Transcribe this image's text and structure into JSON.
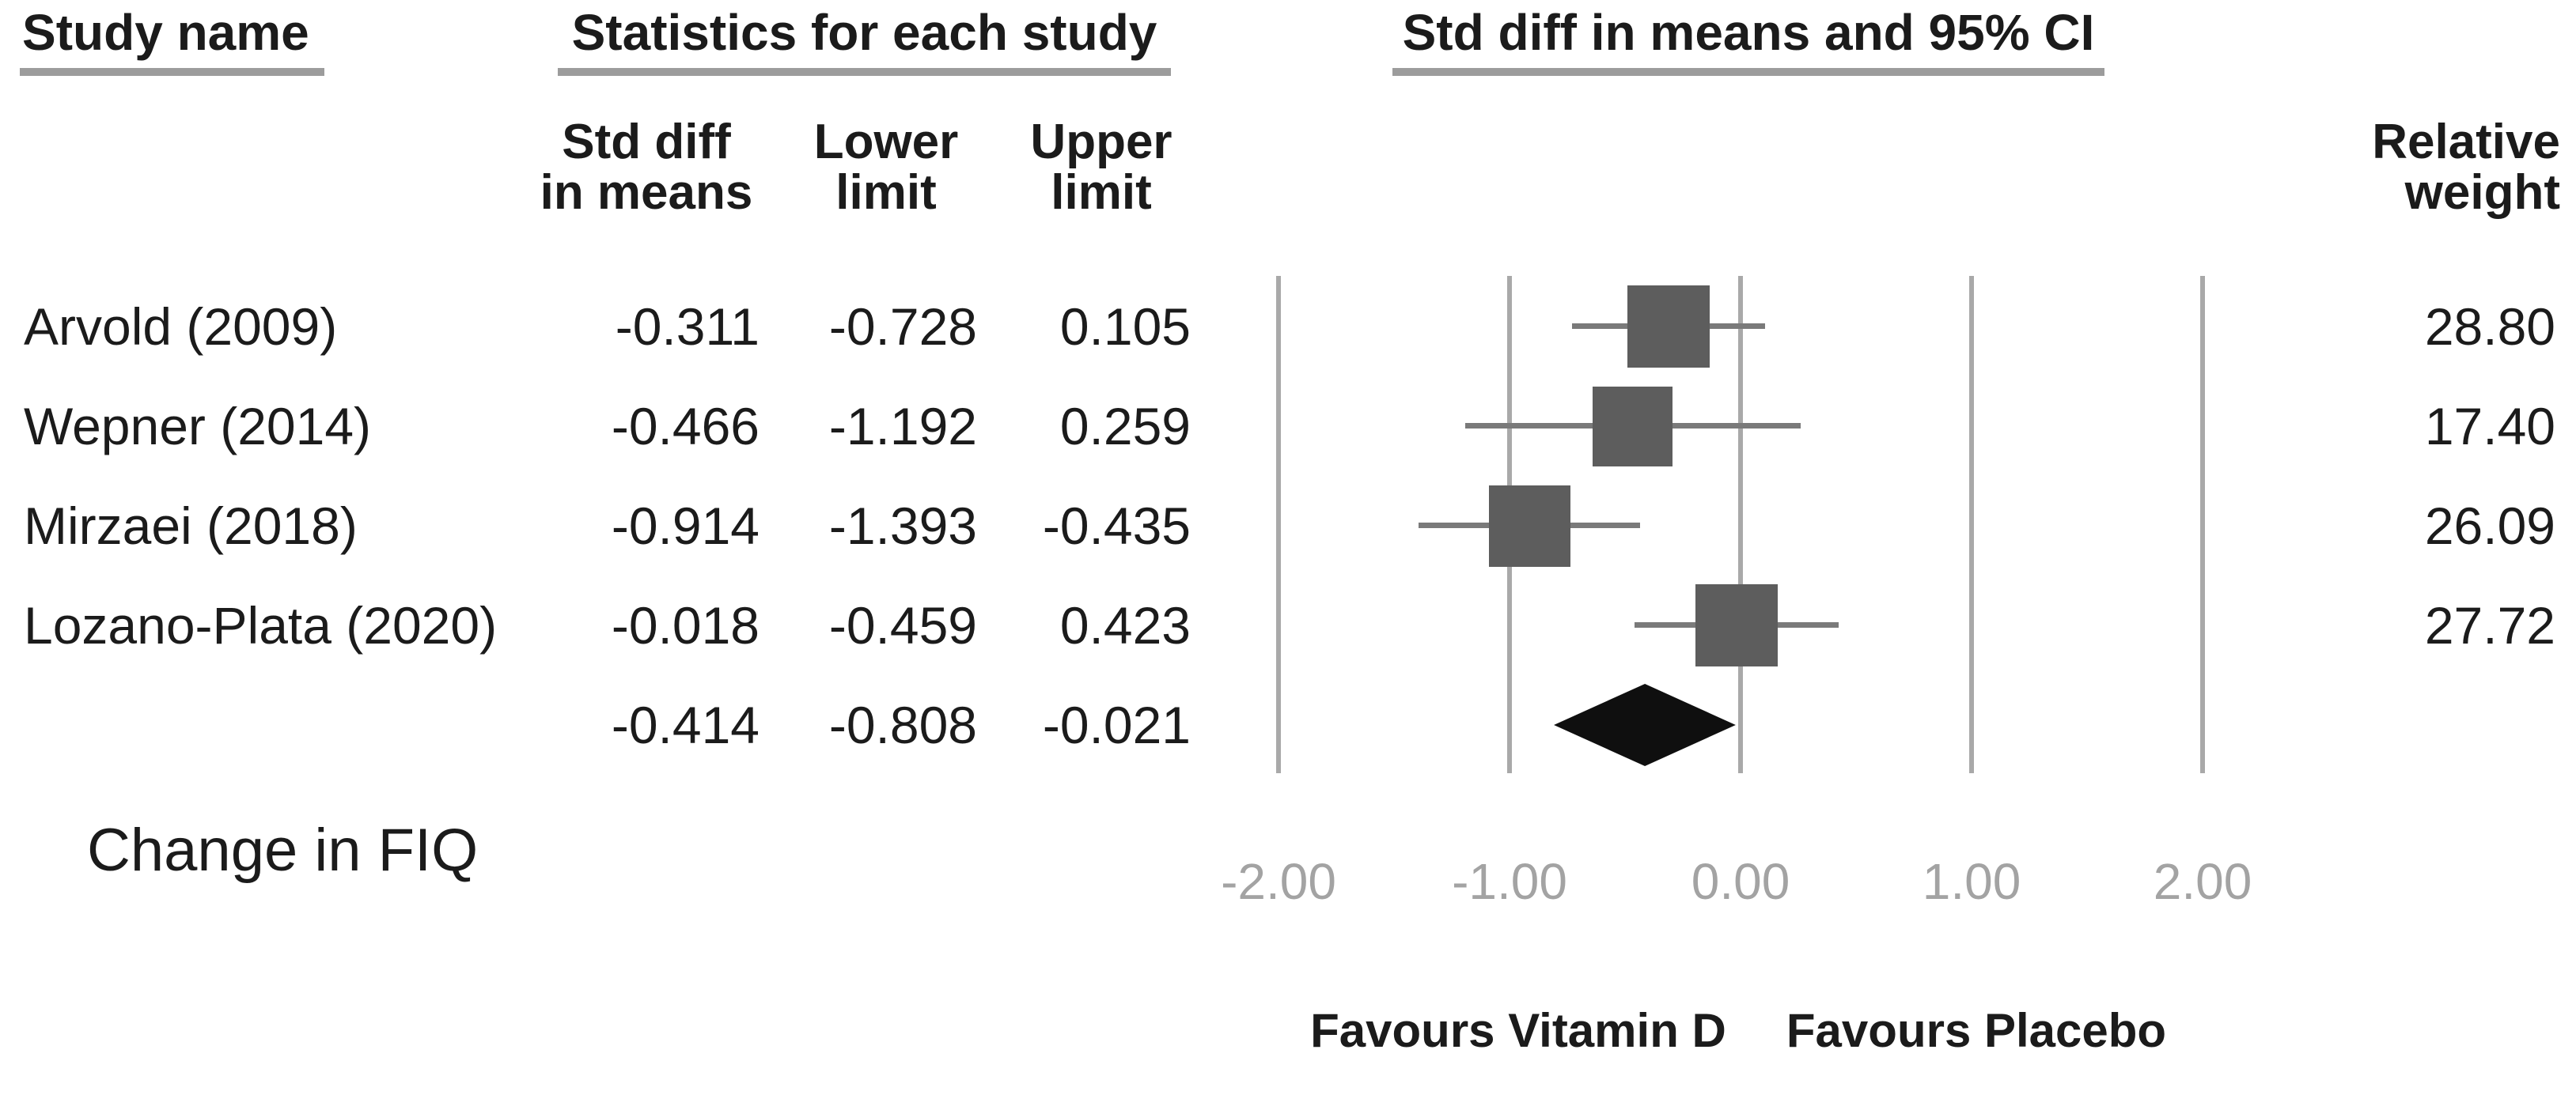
{
  "columns": {
    "study": "Study name",
    "stats": "Statistics for each study",
    "plot": "Std diff in means and 95% CI",
    "std_diff": [
      "Std diff",
      "in means"
    ],
    "lower": [
      "Lower",
      "limit"
    ],
    "upper": [
      "Upper",
      "limit"
    ],
    "relative": [
      "Relative",
      "weight"
    ]
  },
  "chart_data": {
    "type": "forest",
    "title": "Std diff in means and 95% CI",
    "x_axis": {
      "ticks": [
        -2,
        -1,
        0,
        1,
        2
      ],
      "tick_labels": [
        "-2.00",
        "-1.00",
        "0.00",
        "1.00",
        "2.00"
      ],
      "xlim": [
        -2.2,
        2.2
      ],
      "grid": true
    },
    "studies": [
      {
        "name": "Arvold (2009)",
        "std_diff_in_means": -0.311,
        "lower_limit": -0.728,
        "upper_limit": 0.105,
        "relative_weight": 28.8
      },
      {
        "name": "Wepner (2014)",
        "std_diff_in_means": -0.466,
        "lower_limit": -1.192,
        "upper_limit": 0.259,
        "relative_weight": 17.4
      },
      {
        "name": "Mirzaei (2018)",
        "std_diff_in_means": -0.914,
        "lower_limit": -1.393,
        "upper_limit": -0.435,
        "relative_weight": 26.09
      },
      {
        "name": "Lozano-Plata (2020)",
        "std_diff_in_means": -0.018,
        "lower_limit": -0.459,
        "upper_limit": 0.423,
        "relative_weight": 27.72
      }
    ],
    "summary": {
      "std_diff_in_means": -0.414,
      "lower_limit": -0.808,
      "upper_limit": -0.021
    },
    "annotations": {
      "outcome": "Change in FIQ",
      "favours_left": "Favours Vitamin D",
      "favours_right": "Favours Placebo"
    },
    "colors": {
      "square": "#5d5d5d",
      "ci_line": "#7a7a7a",
      "gridline": "#a9a9a9",
      "diamond": "#0f0f0f",
      "tick_label": "#a3a3a3",
      "underline": "#9c9c9c",
      "text": "#1b1b1b"
    }
  }
}
